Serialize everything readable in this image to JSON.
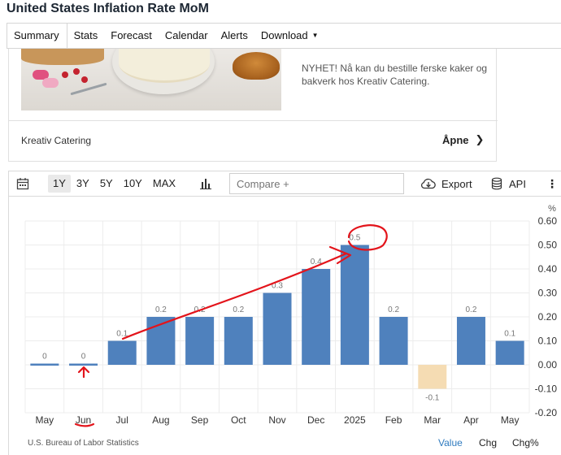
{
  "page": {
    "title": "United States Inflation Rate MoM"
  },
  "nav": {
    "items": [
      {
        "label": "Summary"
      },
      {
        "label": "Stats"
      },
      {
        "label": "Forecast"
      },
      {
        "label": "Calendar"
      },
      {
        "label": "Alerts"
      },
      {
        "label": "Download"
      }
    ]
  },
  "ad": {
    "text": "NYHET! Nå kan du bestille ferske kaker og bakverk hos Kreativ Catering.",
    "sponsor": "Kreativ Catering",
    "cta": "Åpne"
  },
  "toolbar": {
    "ranges": [
      "1Y",
      "3Y",
      "5Y",
      "10Y",
      "MAX"
    ],
    "active_range": "1Y",
    "compare_placeholder": "Compare +",
    "export_label": "Export",
    "api_label": "API"
  },
  "chart_data": {
    "type": "bar",
    "categories": [
      "May",
      "Jun",
      "Jul",
      "Aug",
      "Sep",
      "Oct",
      "Nov",
      "Dec",
      "2025",
      "Feb",
      "Mar",
      "Apr",
      "May"
    ],
    "values": [
      0,
      0,
      0.1,
      0.2,
      0.2,
      0.2,
      0.3,
      0.4,
      0.5,
      0.2,
      -0.1,
      0.2,
      0.1
    ],
    "ylabel": "%",
    "ylim": [
      -0.2,
      0.6
    ],
    "yticks": [
      "0.60",
      "0.50",
      "0.40",
      "0.30",
      "0.20",
      "0.10",
      "0.00",
      "-0.10",
      "-0.20"
    ],
    "grid": true,
    "positive_color": "#4f81bd",
    "negative_color": "#f5dcb3"
  },
  "footer": {
    "source": "U.S. Bureau of Labor Statistics",
    "views": [
      {
        "label": "Value",
        "active": true
      },
      {
        "label": "Chg"
      },
      {
        "label": "Chg%"
      }
    ]
  },
  "colors": {
    "annotation": "#e3141b",
    "link_active": "#2f7bbf"
  }
}
